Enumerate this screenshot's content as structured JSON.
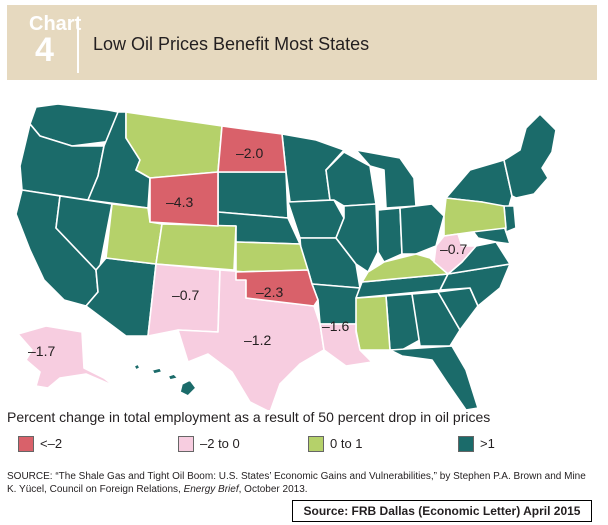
{
  "header": {
    "chart_word": "Chart",
    "chart_number": "4",
    "title": "Low Oil Prices Benefit Most States"
  },
  "colors": {
    "lt_neg2": "#d9616a",
    "neg2_to_0": "#f7cde0",
    "zero_to_1": "#b5d16a",
    "gt_1": "#1b6b6a",
    "header_bg": "#e6d9bf"
  },
  "map": {
    "labels": {
      "wy": "–4.3",
      "nd": "–2.0",
      "ok": "–2.3",
      "nm": "–0.7",
      "tx": "–1.2",
      "la": "–1.6",
      "ak": "–1.7",
      "wv": "–0.7"
    }
  },
  "legend": {
    "title": "Percent change in total employment as a result of 50 percent drop in oil prices",
    "items": [
      {
        "label": "<–2",
        "color": "#d9616a"
      },
      {
        "label": "–2 to 0",
        "color": "#f7cde0"
      },
      {
        "label": "0 to 1",
        "color": "#b5d16a"
      },
      {
        "label": ">1",
        "color": "#1b6b6a"
      }
    ]
  },
  "source": {
    "prefix": "SOURCE: “The Shale Gas and Tight Oil Boom: U.S. States’ Economic Gains and Vulnerabilities,” by Stephen P.A. Brown and Mine K. Yücel, Council on Foreign Relations, ",
    "italic": "Energy Brief",
    "suffix": ", October 2013."
  },
  "credit": "Source: FRB Dallas (Economic Letter) April 2015"
}
